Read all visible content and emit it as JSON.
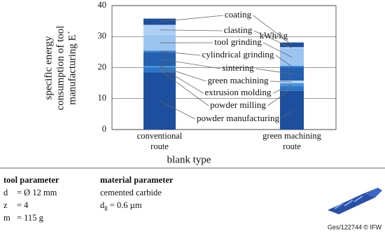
{
  "chart_data": {
    "type": "stacked_bar",
    "y_label": [
      "specific energy",
      "consumption of tool",
      "manufacturing E´"
    ],
    "unit_label": "kWh/kg",
    "x_label": "blank type",
    "categories": [
      "conventional route",
      "green machining route"
    ],
    "ylim": [
      0,
      40
    ],
    "yticks": [
      0,
      10,
      20,
      30,
      40
    ],
    "grid": true,
    "series": [
      {
        "name": "powder manufacturing",
        "color": "#1d4f9e",
        "values": [
          18.5,
          12.5
        ]
      },
      {
        "name": "powder milling",
        "color": "#2b78c8",
        "values": [
          1.5,
          1.5
        ]
      },
      {
        "name": "extrusion molding",
        "color": "#4a93dd",
        "values": [
          0.5,
          1
        ]
      },
      {
        "name": "green machining",
        "color": "#b9d6f5",
        "values": [
          0,
          0.8
        ]
      },
      {
        "name": "sintering",
        "color": "#2560b0",
        "values": [
          4.5,
          4.3
        ]
      },
      {
        "name": "cylindrical grinding",
        "color": "#3a86d6",
        "values": [
          0.5,
          0.5
        ]
      },
      {
        "name": "tool grinding",
        "color": "#9cc4f0",
        "values": [
          5,
          5.5
        ]
      },
      {
        "name": "clasting",
        "color": "#afd0f5",
        "values": [
          3.3,
          0.5
        ]
      },
      {
        "name": "coating",
        "color": "#1d4f9e",
        "values": [
          2,
          1.5
        ]
      }
    ]
  },
  "params": {
    "tool": {
      "title": "tool parameter",
      "rows": [
        [
          "d",
          "= Ø 12 mm"
        ],
        [
          "z",
          "= 4"
        ],
        [
          "m",
          "= 115 g"
        ]
      ]
    },
    "material": {
      "title": "material parameter",
      "line1": "cemented carbide",
      "dg": {
        "base": "d",
        "sub": "g",
        "rest": "= 0.6 µm"
      }
    }
  },
  "credit": "Ges/122744 © IFW"
}
